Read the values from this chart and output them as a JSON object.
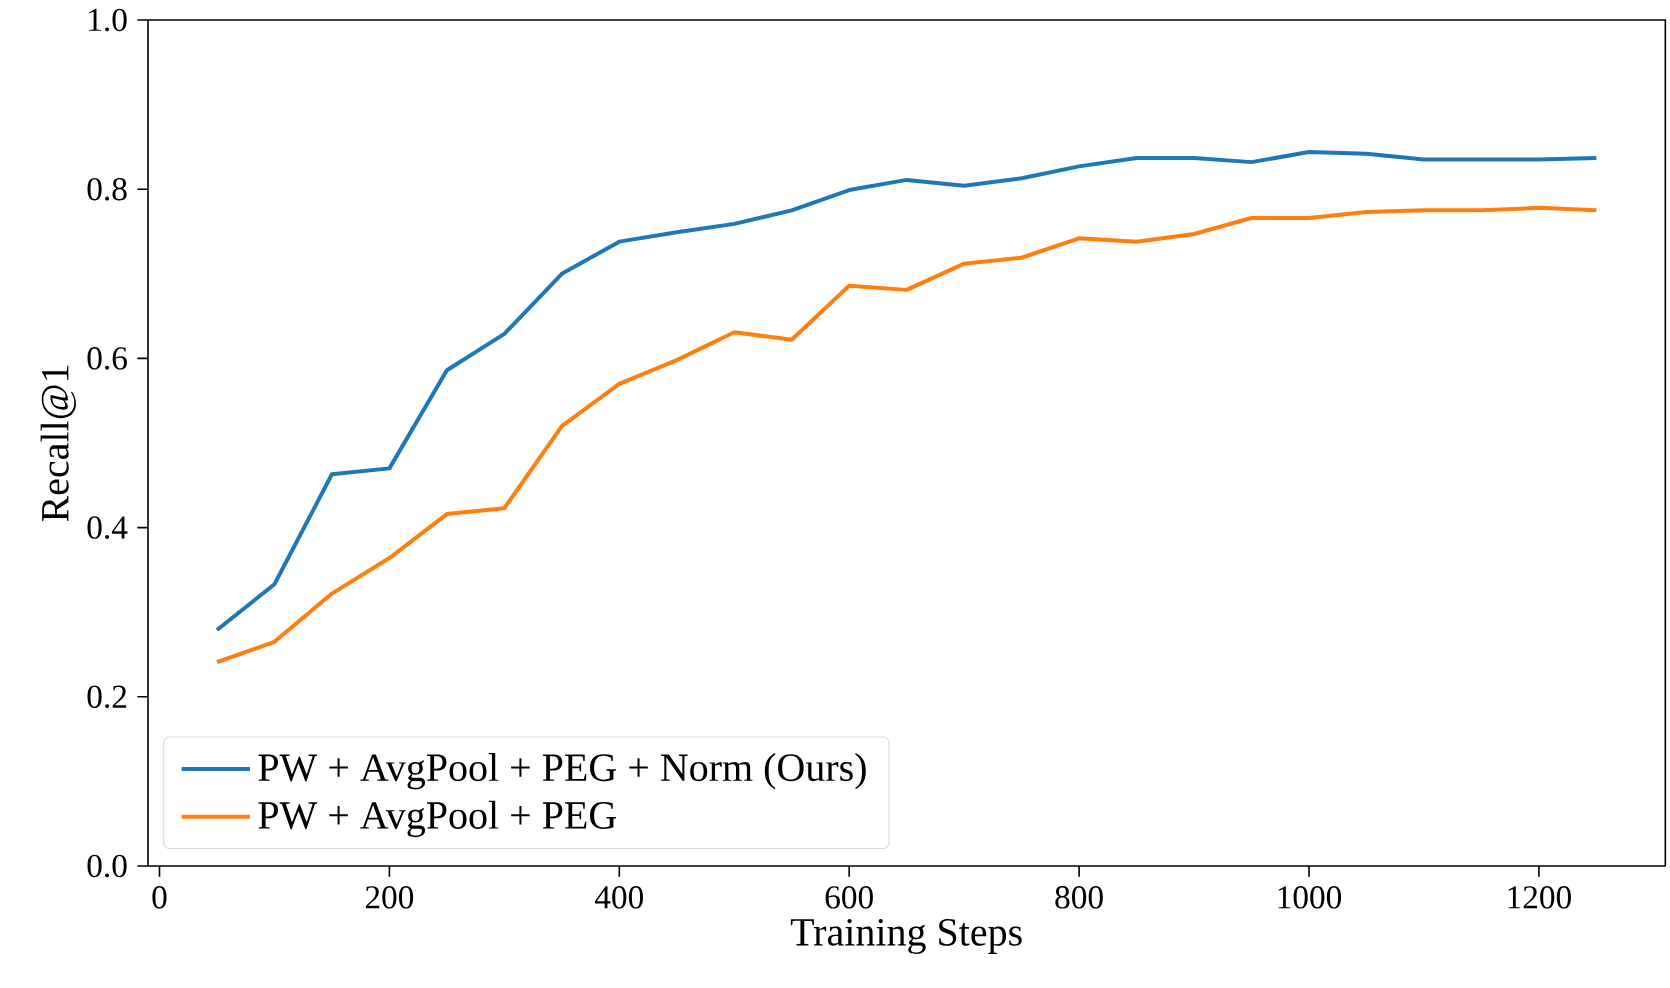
{
  "chart_data": {
    "type": "line",
    "xlabel": "Training Steps",
    "ylabel": "Recall@1",
    "x": [
      50,
      100,
      150,
      200,
      250,
      300,
      350,
      400,
      450,
      500,
      550,
      600,
      650,
      700,
      750,
      800,
      850,
      900,
      950,
      1000,
      1050,
      1100,
      1150,
      1200,
      1250
    ],
    "series": [
      {
        "name": "PW + AvgPool + PEG + Norm (Ours)",
        "color": "#1f77b4",
        "values": [
          0.279,
          0.333,
          0.463,
          0.47,
          0.586,
          0.629,
          0.7,
          0.738,
          0.749,
          0.759,
          0.775,
          0.799,
          0.811,
          0.804,
          0.813,
          0.827,
          0.837,
          0.837,
          0.832,
          0.844,
          0.842,
          0.835,
          0.835,
          0.835,
          0.837
        ]
      },
      {
        "name": "PW + AvgPool + PEG",
        "color": "#ff7f0e",
        "values": [
          0.241,
          0.265,
          0.322,
          0.364,
          0.416,
          0.423,
          0.52,
          0.57,
          0.598,
          0.631,
          0.622,
          0.686,
          0.681,
          0.712,
          0.719,
          0.742,
          0.738,
          0.747,
          0.766,
          0.766,
          0.773,
          0.775,
          0.775,
          0.778,
          0.775
        ]
      }
    ],
    "xlim": [
      -10,
      1310
    ],
    "ylim": [
      0,
      1.0
    ],
    "xticks": [
      0,
      200,
      400,
      600,
      800,
      1000,
      1200
    ],
    "yticks": [
      {
        "value": 0,
        "label": "0.0"
      },
      0.2,
      0.4,
      0.6,
      0.8,
      {
        "value": 1,
        "label": "1.0"
      }
    ],
    "legend": "bottom left",
    "grid": false,
    "marker": "none",
    "line_style": "solid"
  }
}
